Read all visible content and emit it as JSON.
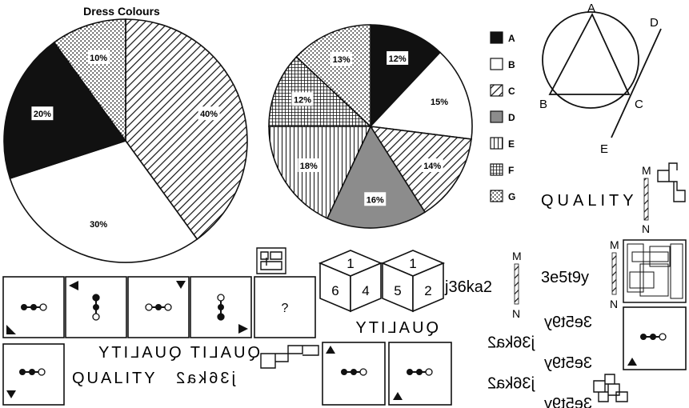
{
  "chart_data": [
    {
      "type": "pie",
      "title": "Dress Colours",
      "slices": [
        {
          "label": "",
          "value": 40,
          "pattern": "diagonal"
        },
        {
          "label": "",
          "value": 30,
          "pattern": "white"
        },
        {
          "label": "",
          "value": 20,
          "pattern": "black"
        },
        {
          "label": "",
          "value": 10,
          "pattern": "dots"
        }
      ],
      "value_labels": [
        "40%",
        "30%",
        "20%",
        "10%"
      ]
    },
    {
      "type": "pie",
      "title": "",
      "categories": [
        "A",
        "B",
        "C",
        "D",
        "E",
        "F",
        "G"
      ],
      "values": [
        12,
        15,
        14,
        16,
        18,
        12,
        13
      ],
      "value_labels": [
        "12%",
        "15%",
        "14%",
        "16%",
        "18%",
        "12%",
        "13%"
      ],
      "patterns": [
        "black",
        "white",
        "diagonal",
        "gray",
        "vertical",
        "grid",
        "dots"
      ],
      "legend_position": "right"
    }
  ],
  "geometry": {
    "labels": [
      "A",
      "B",
      "C",
      "D",
      "E"
    ]
  },
  "puzzle": {
    "question_mark": "?"
  },
  "dice": [
    {
      "top": "1",
      "left": "6",
      "right": "4"
    },
    {
      "top": "1",
      "left": "5",
      "right": "2"
    }
  ],
  "texts": {
    "quality": "QUALITY",
    "quality_mirror": "QUALITY",
    "strip_top": "QUALIT QUALITY",
    "strip_bottom_quality": "QUALITY",
    "strip_bottom_code": "j36ka2",
    "code1": "j36ka2",
    "code2": "3e5t9y",
    "mirror_m": "M",
    "mirror_n": "N",
    "stack_codes_top": [
      "3e5t9y",
      "j36ka2"
    ],
    "stack_codes": [
      "3e5t9y",
      "j36ka2",
      "3e5t9y",
      "j36ka2",
      "3e5t9y"
    ]
  },
  "colors": {
    "black": "#111111",
    "gray": "#8c8c8c",
    "white": "#ffffff"
  }
}
